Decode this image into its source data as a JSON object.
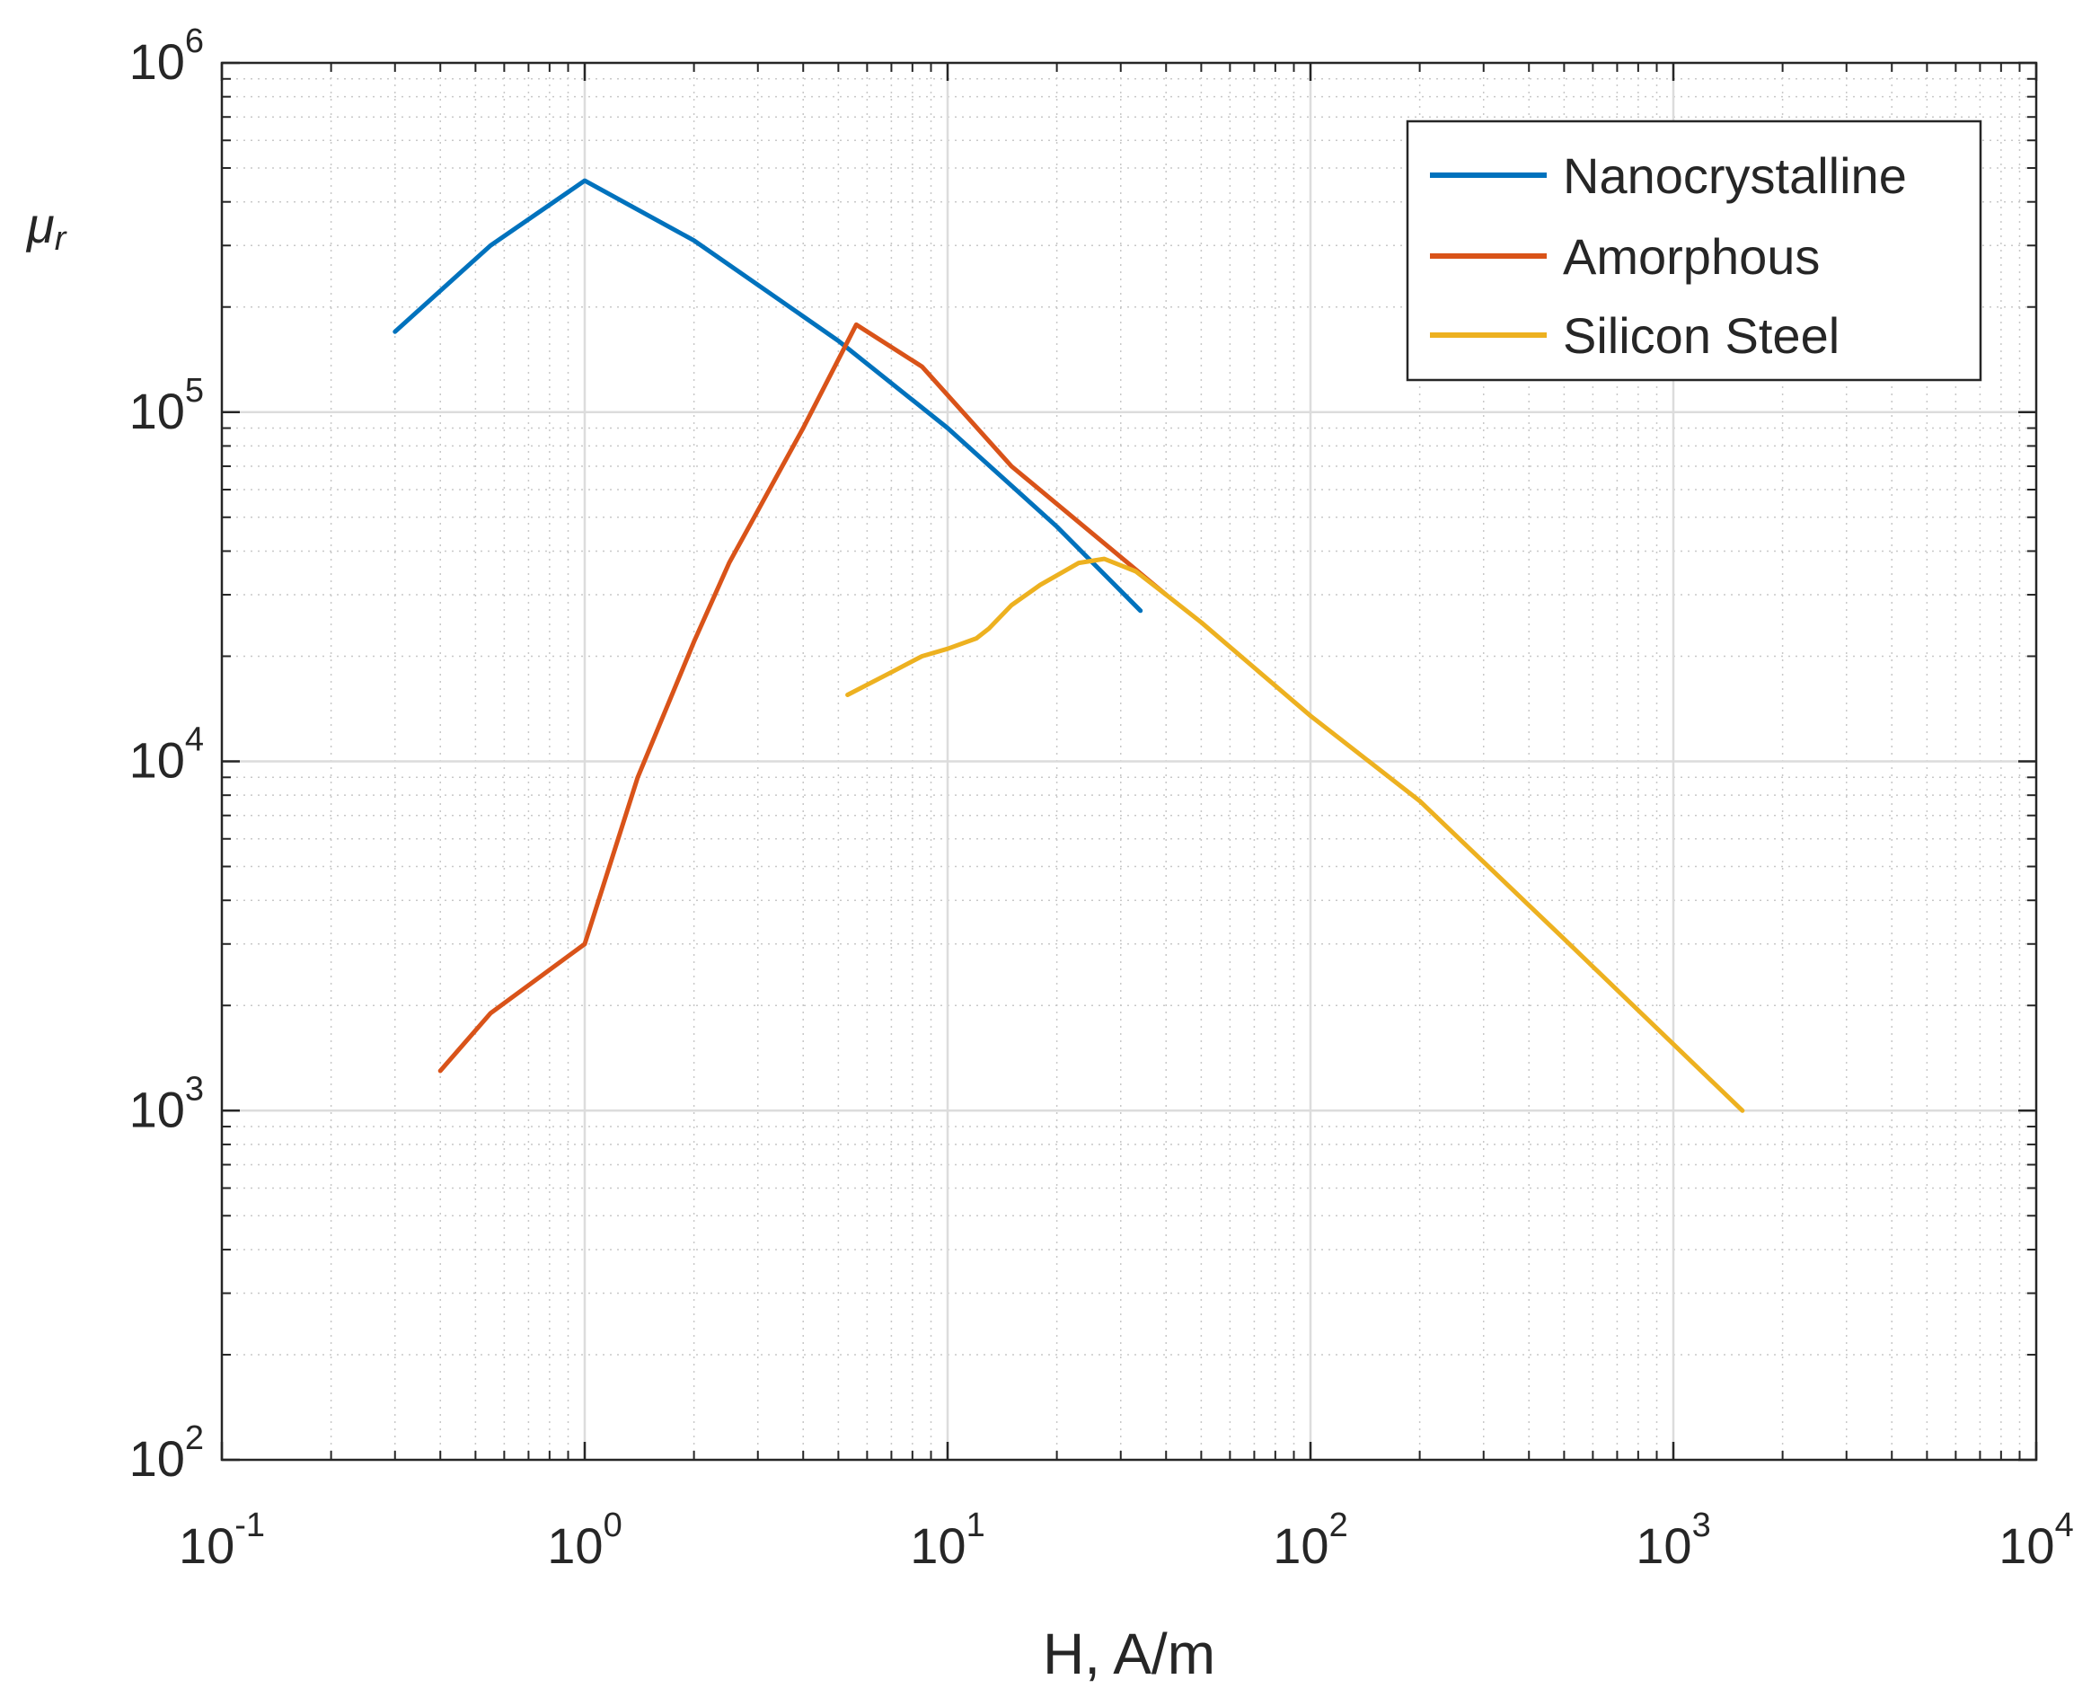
{
  "chart_data": {
    "type": "line",
    "xscale": "log",
    "yscale": "log",
    "xlabel": "H, A/m",
    "ylabel": {
      "base": "μ",
      "sub": "r"
    },
    "xlim": [
      0.1,
      10000
    ],
    "ylim": [
      100,
      1000000
    ],
    "grid": true,
    "legend_position": "top-right",
    "x_ticks": [
      {
        "value": 0.1,
        "base": "10",
        "exp": "-1"
      },
      {
        "value": 1,
        "base": "10",
        "exp": "0"
      },
      {
        "value": 10,
        "base": "10",
        "exp": "1"
      },
      {
        "value": 100,
        "base": "10",
        "exp": "2"
      },
      {
        "value": 1000,
        "base": "10",
        "exp": "3"
      },
      {
        "value": 10000,
        "base": "10",
        "exp": "4"
      }
    ],
    "y_ticks": [
      {
        "value": 100,
        "base": "10",
        "exp": "2"
      },
      {
        "value": 1000,
        "base": "10",
        "exp": "3"
      },
      {
        "value": 10000,
        "base": "10",
        "exp": "4"
      },
      {
        "value": 100000,
        "base": "10",
        "exp": "5"
      },
      {
        "value": 1000000,
        "base": "10",
        "exp": "6"
      }
    ],
    "series": [
      {
        "name": "Nanocrystalline",
        "color": "#0072BD",
        "points": [
          [
            0.3,
            170000
          ],
          [
            0.55,
            300000
          ],
          [
            1.0,
            460000
          ],
          [
            2.0,
            310000
          ],
          [
            5.0,
            160000
          ],
          [
            10.0,
            90000
          ],
          [
            20.0,
            47000
          ],
          [
            34.0,
            27000
          ]
        ]
      },
      {
        "name": "Amorphous",
        "color": "#D95319",
        "points": [
          [
            0.4,
            1300
          ],
          [
            0.55,
            1900
          ],
          [
            1.0,
            3000
          ],
          [
            1.4,
            9000
          ],
          [
            2.0,
            22000
          ],
          [
            2.5,
            37000
          ],
          [
            4.0,
            90000
          ],
          [
            5.6,
            178000
          ],
          [
            8.5,
            135000
          ],
          [
            15.0,
            70000
          ],
          [
            40.0,
            30000
          ]
        ]
      },
      {
        "name": "Silicon Steel",
        "color": "#EDB120",
        "points": [
          [
            5.3,
            15500
          ],
          [
            7.0,
            18000
          ],
          [
            8.5,
            20000
          ],
          [
            10.0,
            21000
          ],
          [
            12.0,
            22500
          ],
          [
            13.0,
            24000
          ],
          [
            15.0,
            28000
          ],
          [
            18.0,
            32000
          ],
          [
            23.0,
            37000
          ],
          [
            27.0,
            38000
          ],
          [
            33.0,
            35000
          ],
          [
            40.0,
            30000
          ],
          [
            50.0,
            25000
          ],
          [
            100.0,
            13500
          ],
          [
            200.0,
            7700
          ],
          [
            500.0,
            3100
          ],
          [
            1000.0,
            1550
          ],
          [
            1550.0,
            1000
          ]
        ]
      }
    ]
  }
}
